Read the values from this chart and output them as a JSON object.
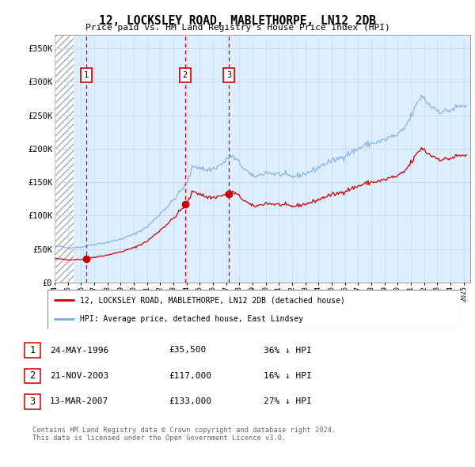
{
  "title": "12, LOCKSLEY ROAD, MABLETHORPE, LN12 2DB",
  "subtitle": "Price paid vs. HM Land Registry's House Price Index (HPI)",
  "ylim": [
    0,
    370000
  ],
  "yticks": [
    0,
    50000,
    100000,
    150000,
    200000,
    250000,
    300000,
    350000
  ],
  "ytick_labels": [
    "£0",
    "£50K",
    "£100K",
    "£150K",
    "£200K",
    "£250K",
    "£300K",
    "£350K"
  ],
  "xlim_start": 1994.0,
  "xlim_end": 2025.5,
  "xticks": [
    1994,
    1995,
    1996,
    1997,
    1998,
    1999,
    2000,
    2001,
    2002,
    2003,
    2004,
    2005,
    2006,
    2007,
    2008,
    2009,
    2010,
    2011,
    2012,
    2013,
    2014,
    2015,
    2016,
    2017,
    2018,
    2019,
    2020,
    2021,
    2022,
    2023,
    2024,
    2025
  ],
  "sale_dates": [
    1996.39,
    2003.89,
    2007.2
  ],
  "sale_prices": [
    35500,
    117000,
    133000
  ],
  "sale_labels": [
    "1",
    "2",
    "3"
  ],
  "hpi_color": "#7aaadd",
  "property_color": "#cc0000",
  "legend_property": "12, LOCKSLEY ROAD, MABLETHORPE, LN12 2DB (detached house)",
  "legend_hpi": "HPI: Average price, detached house, East Lindsey",
  "table_rows": [
    {
      "num": "1",
      "date": "24-MAY-1996",
      "price": "£35,500",
      "hpi": "36% ↓ HPI"
    },
    {
      "num": "2",
      "date": "21-NOV-2003",
      "price": "£117,000",
      "hpi": "16% ↓ HPI"
    },
    {
      "num": "3",
      "date": "13-MAR-2007",
      "price": "£133,000",
      "hpi": "27% ↓ HPI"
    }
  ],
  "footnote1": "Contains HM Land Registry data © Crown copyright and database right 2024.",
  "footnote2": "This data is licensed under the Open Government Licence v3.0.",
  "grid_color": "#c8d8ee",
  "vline_color": "#cc0000",
  "chart_bg": "#ddeeff",
  "hatch_end": 1995.42
}
